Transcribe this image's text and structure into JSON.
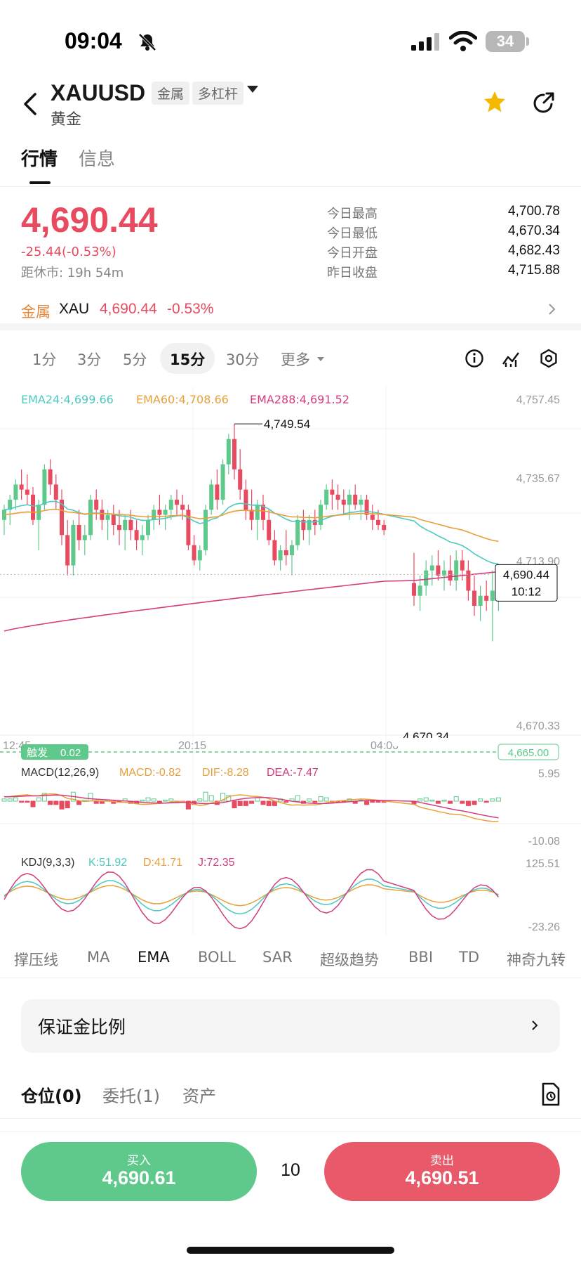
{
  "status_bar": {
    "time": "09:04",
    "battery": "34"
  },
  "header": {
    "symbol": "XAUUSD",
    "tag_category": "金属",
    "tag_leverage": "多杠杆",
    "name": "黄金",
    "starred": true,
    "star_color": "#f5b800"
  },
  "tabs": [
    {
      "label": "行情",
      "active": true
    },
    {
      "label": "信息",
      "active": false
    }
  ],
  "quote": {
    "last_price": "4,690.44",
    "change": "-25.44(-0.53%)",
    "close_countdown": "距休市: 19h 54m",
    "stats": [
      {
        "label": "今日最高",
        "value": "4,700.78"
      },
      {
        "label": "今日最低",
        "value": "4,670.34"
      },
      {
        "label": "今日开盘",
        "value": "4,682.43"
      },
      {
        "label": "昨日收盘",
        "value": "4,715.88"
      }
    ]
  },
  "related": {
    "type": "金属",
    "symbol": "XAU",
    "price": "4,690.44",
    "change": "-0.53%"
  },
  "intervals": [
    {
      "label": "1分",
      "active": false
    },
    {
      "label": "3分",
      "active": false
    },
    {
      "label": "5分",
      "active": false
    },
    {
      "label": "15分",
      "active": true
    },
    {
      "label": "30分",
      "active": false
    },
    {
      "label": "更多",
      "active": false
    }
  ],
  "chart_data": {
    "type": "candlestick",
    "interval": "15分",
    "legend": [
      {
        "label": "EMA24:4,699.66",
        "color": "#4dc9c0"
      },
      {
        "label": "EMA60:4,708.66",
        "color": "#e8a03a"
      },
      {
        "label": "EMA288:4,691.52",
        "color": "#d23e7c"
      }
    ],
    "y_ticks": [
      "4,757.45",
      "4,735.67",
      "4,713.90",
      "4,670.33"
    ],
    "ylim": [
      4663,
      4762
    ],
    "x_ticks": [
      "12:45",
      "20:15",
      "04:00"
    ],
    "high_label": "4,749.54",
    "low_label": "4,670.34",
    "last_price_label": "4,690.44",
    "countdown_label": "10:12",
    "trigger_label": "触发",
    "trigger_value": "0.02",
    "trigger_price": "4,665.00",
    "up_color": "#5ec98a",
    "down_color": "#e84a5f",
    "candles": [
      [
        4712,
        4718,
        4706,
        4716
      ],
      [
        4716,
        4722,
        4710,
        4720
      ],
      [
        4720,
        4728,
        4716,
        4726
      ],
      [
        4726,
        4732,
        4720,
        4724
      ],
      [
        4724,
        4730,
        4718,
        4722
      ],
      [
        4722,
        4725,
        4710,
        4712
      ],
      [
        4712,
        4720,
        4700,
        4718
      ],
      [
        4718,
        4734,
        4716,
        4732
      ],
      [
        4732,
        4736,
        4722,
        4726
      ],
      [
        4726,
        4730,
        4716,
        4720
      ],
      [
        4720,
        4724,
        4702,
        4706
      ],
      [
        4706,
        4712,
        4690,
        4694
      ],
      [
        4694,
        4712,
        4690,
        4710
      ],
      [
        4710,
        4716,
        4700,
        4704
      ],
      [
        4704,
        4710,
        4698,
        4706
      ],
      [
        4706,
        4722,
        4704,
        4720
      ],
      [
        4720,
        4724,
        4712,
        4716
      ],
      [
        4716,
        4720,
        4708,
        4712
      ],
      [
        4712,
        4716,
        4704,
        4714
      ],
      [
        4714,
        4718,
        4706,
        4710
      ],
      [
        4710,
        4716,
        4702,
        4708
      ],
      [
        4708,
        4714,
        4700,
        4712
      ],
      [
        4712,
        4716,
        4704,
        4708
      ],
      [
        4708,
        4712,
        4700,
        4704
      ],
      [
        4704,
        4710,
        4698,
        4706
      ],
      [
        4706,
        4714,
        4704,
        4712
      ],
      [
        4712,
        4718,
        4708,
        4716
      ],
      [
        4716,
        4722,
        4710,
        4714
      ],
      [
        4714,
        4718,
        4708,
        4716
      ],
      [
        4716,
        4722,
        4712,
        4720
      ],
      [
        4720,
        4724,
        4714,
        4718
      ],
      [
        4718,
        4722,
        4712,
        4716
      ],
      [
        4716,
        4718,
        4700,
        4702
      ],
      [
        4702,
        4706,
        4694,
        4696
      ],
      [
        4696,
        4702,
        4692,
        4700
      ],
      [
        4700,
        4718,
        4698,
        4716
      ],
      [
        4716,
        4728,
        4714,
        4726
      ],
      [
        4726,
        4732,
        4716,
        4720
      ],
      [
        4720,
        4736,
        4718,
        4734
      ],
      [
        4734,
        4746,
        4730,
        4744
      ],
      [
        4744,
        4750,
        4728,
        4732
      ],
      [
        4732,
        4740,
        4720,
        4724
      ],
      [
        4724,
        4728,
        4712,
        4716
      ],
      [
        4716,
        4724,
        4708,
        4712
      ],
      [
        4712,
        4720,
        4704,
        4718
      ],
      [
        4718,
        4722,
        4708,
        4712
      ],
      [
        4712,
        4716,
        4702,
        4704
      ],
      [
        4704,
        4708,
        4694,
        4696
      ],
      [
        4696,
        4702,
        4692,
        4700
      ],
      [
        4700,
        4708,
        4694,
        4698
      ],
      [
        4698,
        4704,
        4690,
        4702
      ],
      [
        4702,
        4714,
        4700,
        4712
      ],
      [
        4712,
        4716,
        4704,
        4708
      ],
      [
        4708,
        4714,
        4702,
        4712
      ],
      [
        4712,
        4716,
        4706,
        4710
      ],
      [
        4710,
        4720,
        4708,
        4718
      ],
      [
        4718,
        4726,
        4716,
        4724
      ],
      [
        4724,
        4728,
        4716,
        4722
      ],
      [
        4722,
        4726,
        4716,
        4720
      ],
      [
        4720,
        4724,
        4714,
        4718
      ],
      [
        4718,
        4724,
        4712,
        4722
      ],
      [
        4722,
        4726,
        4716,
        4718
      ],
      [
        4718,
        4722,
        4712,
        4720
      ],
      [
        4720,
        4722,
        4712,
        4714
      ],
      [
        4714,
        4718,
        4708,
        4712
      ],
      [
        4712,
        4716,
        4708,
        4710
      ],
      [
        4710,
        4712,
        4706,
        4708
      ],
      [
        4687,
        4699,
        4678,
        4682
      ],
      [
        4682,
        4690,
        4676,
        4686
      ],
      [
        4686,
        4696,
        4682,
        4692
      ],
      [
        4692,
        4698,
        4686,
        4694
      ],
      [
        4694,
        4700,
        4688,
        4690
      ],
      [
        4690,
        4696,
        4684,
        4692
      ],
      [
        4692,
        4698,
        4686,
        4688
      ],
      [
        4688,
        4700,
        4684,
        4696
      ],
      [
        4696,
        4700,
        4688,
        4692
      ],
      [
        4692,
        4696,
        4680,
        4684
      ],
      [
        4684,
        4690,
        4674,
        4678
      ],
      [
        4678,
        4686,
        4672,
        4682
      ],
      [
        4682,
        4688,
        4676,
        4680
      ],
      [
        4680,
        4692,
        4664,
        4684
      ],
      [
        4684,
        4692,
        4676,
        4690
      ]
    ]
  },
  "macd": {
    "label": "MACD(12,26,9)",
    "macd": "MACD:-0.82",
    "dif": "DIF:-8.28",
    "dea": "DEA:-7.47",
    "top": "5.95",
    "bottom": "-10.08"
  },
  "kdj": {
    "label": "KDJ(9,3,3)",
    "k": "K:51.92",
    "d": "D:41.71",
    "j": "J:72.35",
    "top": "125.51",
    "bottom": "-23.26"
  },
  "indicator_tabs": [
    {
      "label": "撑压线",
      "active": false
    },
    {
      "label": "MA",
      "active": false
    },
    {
      "label": "EMA",
      "active": true
    },
    {
      "label": "BOLL",
      "active": false
    },
    {
      "label": "SAR",
      "active": false
    },
    {
      "label": "超级趋势",
      "active": false
    },
    {
      "label": "BBI",
      "active": false
    },
    {
      "label": "TD",
      "active": false
    },
    {
      "label": "神奇九转",
      "active": false
    }
  ],
  "margin_ratio": {
    "label": "保证金比例"
  },
  "position_tabs": [
    {
      "label": "仓位(0)",
      "active": true
    },
    {
      "label": "委托(1)",
      "active": false
    },
    {
      "label": "资产",
      "active": false
    }
  ],
  "trade": {
    "buy_label": "买入",
    "buy_price": "4,690.61",
    "quantity": "10",
    "sell_label": "卖出",
    "sell_price": "4,690.51"
  }
}
